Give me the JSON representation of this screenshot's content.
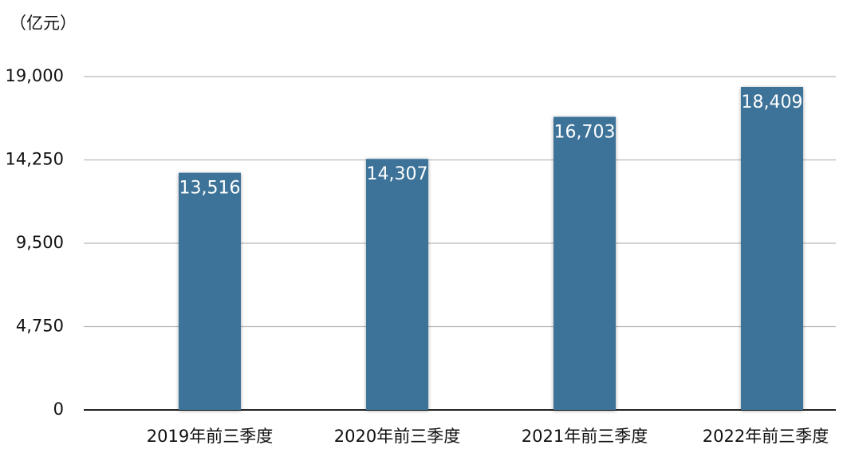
{
  "chart_data": {
    "type": "bar",
    "y_axis_label": "（亿元）",
    "categories": [
      "2019年前三季度",
      "2020年前三季度",
      "2021年前三季度",
      "2022年前三季度"
    ],
    "values": [
      13516,
      14307,
      16703,
      18409
    ],
    "value_labels": [
      "13,516",
      "14,307",
      "16,703",
      "18,409"
    ],
    "color": "#3e7399",
    "ylim": [
      0,
      19000
    ],
    "yticks": [
      0,
      {
        "value": 4750,
        "label": "4,750"
      },
      {
        "value": 9500,
        "label": "9,500"
      },
      {
        "value": 14250,
        "label": "14,250"
      },
      {
        "value": 19000,
        "label": "19,000"
      }
    ],
    "grid": true
  }
}
